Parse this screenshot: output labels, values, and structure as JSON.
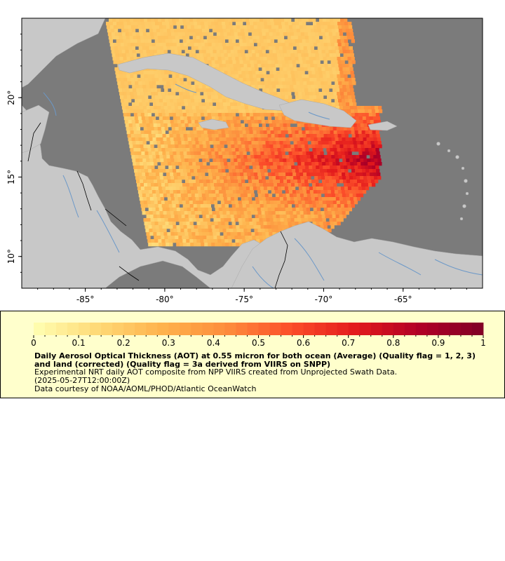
{
  "map": {
    "x_axis": {
      "ticks": [
        "-85°",
        "-80°",
        "-75°",
        "-70°",
        "-65°"
      ],
      "lon_range": [
        -89.0,
        -60.0
      ]
    },
    "y_axis": {
      "ticks": [
        "20°",
        "15°",
        "10°"
      ],
      "lat_range": [
        8.0,
        25.0
      ]
    },
    "colors": {
      "ocean": "#7b7b7b",
      "land": "#c8c8c8",
      "rivers": "#6b98c8",
      "borders": "#000000"
    }
  },
  "legend": {
    "ticks": [
      "0",
      "0.1",
      "0.2",
      "0.3",
      "0.4",
      "0.5",
      "0.6",
      "0.7",
      "0.8",
      "0.9",
      "1"
    ],
    "range": [
      0,
      1
    ],
    "colors": [
      "#ffffb2",
      "#fed976",
      "#feb24c",
      "#fd8d3c",
      "#fc4e2a",
      "#e31a1c",
      "#b10026",
      "#800026"
    ],
    "title": "Daily Aerosol Optical Thickness (AOT) at 0.55 micron for both ocean (Average) (Quality flag = 1, 2, 3) and land (corrected) (Quality flag = 3a derived from VIIRS on SNPP)",
    "subtitle": "Experimental NRT daily AOT composite from NPP VIIRS created from Unprojected Swath Data.",
    "time": "(2025-05-27T12:00:00Z)",
    "credit": "Data courtesy of NOAA/AOML/PHOD/Atlantic OceanWatch"
  }
}
